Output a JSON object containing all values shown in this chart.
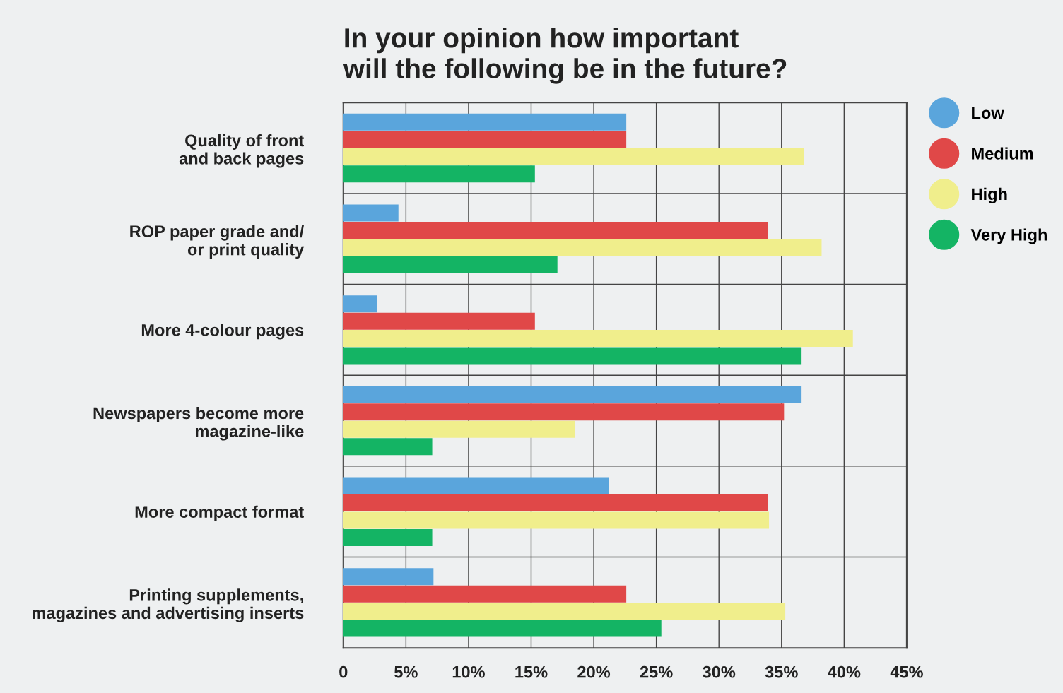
{
  "chart_data": {
    "type": "bar",
    "orientation": "horizontal",
    "title": "In your opinion how important\nwill the following be in the future?",
    "categories": [
      "Quality of front\nand back pages",
      "ROP paper grade and/\nor print quality",
      "More 4-colour pages",
      "Newspapers become more\nmagazine-like",
      "More compact format",
      "Printing supplements,\nmagazines and advertising inserts"
    ],
    "series": [
      {
        "name": "Low",
        "color": "#5aa5dc",
        "values": [
          22.6,
          4.4,
          2.7,
          36.6,
          21.2,
          7.2
        ]
      },
      {
        "name": "Medium",
        "color": "#e04848",
        "values": [
          22.6,
          33.9,
          15.3,
          35.2,
          33.9,
          22.6
        ]
      },
      {
        "name": "High",
        "color": "#f0ee8c",
        "values": [
          36.8,
          38.2,
          40.7,
          18.5,
          34.0,
          35.3
        ]
      },
      {
        "name": "Very High",
        "color": "#14b464",
        "values": [
          15.3,
          17.1,
          36.6,
          7.1,
          7.1,
          25.4
        ]
      }
    ],
    "xlim": [
      0,
      45
    ],
    "xticks": [
      0,
      {
        "value": 5,
        "label": "5%"
      },
      {
        "value": 10,
        "label": "10%"
      },
      {
        "value": 15,
        "label": "15%"
      },
      {
        "value": 20,
        "label": "20%"
      },
      {
        "value": 25,
        "label": "25%"
      },
      {
        "value": 30,
        "label": "30%"
      },
      {
        "value": 35,
        "label": "35%"
      },
      {
        "value": 40,
        "label": "40%"
      },
      {
        "value": 45,
        "label": "45%"
      }
    ],
    "grid": true,
    "legend": "top right",
    "marker": "circle"
  }
}
